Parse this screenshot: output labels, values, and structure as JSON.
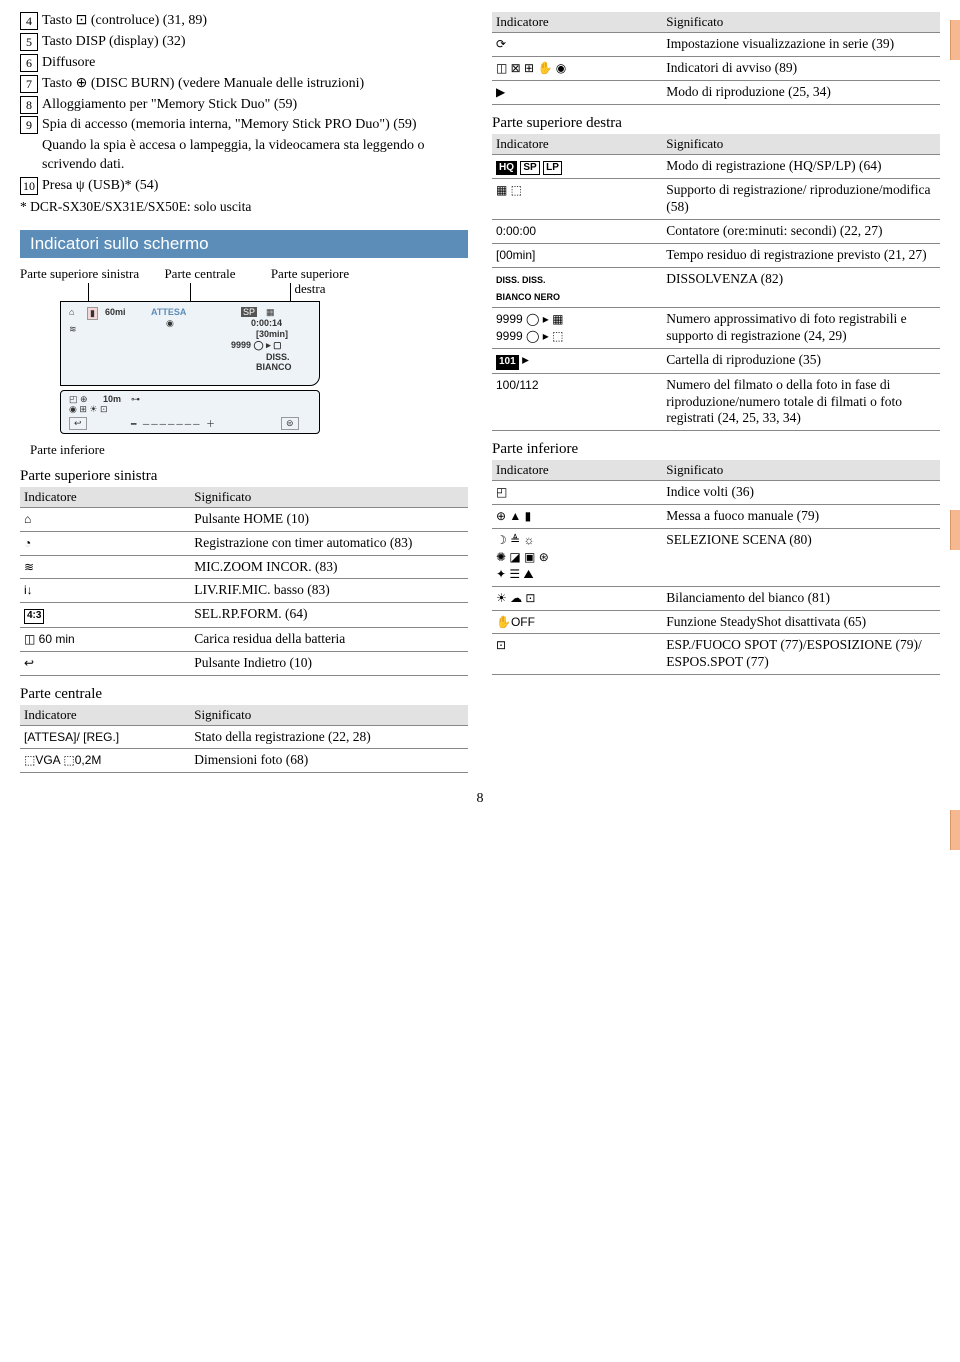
{
  "page_number": "8",
  "left": {
    "items": [
      {
        "n": "4",
        "text": "Tasto ⊡ (controluce) (31, 89)"
      },
      {
        "n": "5",
        "text": "Tasto DISP (display) (32)"
      },
      {
        "n": "6",
        "text": "Diffusore"
      },
      {
        "n": "7",
        "text": "Tasto ⊕ (DISC BURN) (vedere Manuale delle istruzioni)"
      },
      {
        "n": "8",
        "text": "Alloggiamento per \"Memory Stick Duo\" (59)"
      },
      {
        "n": "9",
        "text": "Spia di accesso (memoria interna, \"Memory Stick PRO Duo\") (59)"
      }
    ],
    "note": "Quando la spia è accesa o lampeggia, la videocamera sta leggendo o scrivendo dati.",
    "item10": {
      "n": "10",
      "text": "Presa ψ (USB)* (54)"
    },
    "footnote": "*  DCR-SX30E/SX31E/SX50E: solo uscita",
    "section_bar": "Indicatori sullo schermo",
    "diag": {
      "tl": "Parte superiore sinistra",
      "tc": "Parte centrale",
      "tr": "Parte superiore destra",
      "bl": "Parte inferiore",
      "m_attesa": "ATTESA",
      "m_60": "60mi",
      "m_sp": "SP",
      "m_time": "0:00:14",
      "m_30": "[30min]",
      "m_9999": "9999 ◯ ▸ ▢",
      "m_diss": "DISS.",
      "m_bianco": "BIANCO",
      "m_10m": "10m"
    },
    "upper_left": {
      "title": "Parte superiore sinistra",
      "h1": "Indicatore",
      "h2": "Significato",
      "rows": [
        {
          "i": "⌂",
          "s": "Pulsante HOME (10)"
        },
        {
          "i": "◔",
          "s": "Registrazione con timer automatico (83)"
        },
        {
          "i": "≋",
          "s": "MIC.ZOOM INCOR. (83)"
        },
        {
          "i": "i↓",
          "s": "LIV.RIF.MIC. basso (83)"
        },
        {
          "i": "4:3",
          "is_box": true,
          "s": "SEL.RP.FORM. (64)"
        },
        {
          "i": "◫ 60 min",
          "s": "Carica residua della batteria"
        },
        {
          "i": "↩",
          "s": "Pulsante Indietro (10)"
        }
      ]
    },
    "center": {
      "title": "Parte centrale",
      "h1": "Indicatore",
      "h2": "Significato",
      "rows": [
        {
          "i": "[ATTESA]/ [REG.]",
          "s": "Stato della registrazione (22, 28)"
        },
        {
          "i": "⬚VGA  ⬚0,2M",
          "s": "Dimensioni foto (68)"
        }
      ]
    }
  },
  "right": {
    "top": {
      "h1": "Indicatore",
      "h2": "Significato",
      "rows": [
        {
          "i": "⟳",
          "s": "Impostazione visualizzazione in serie (39)"
        },
        {
          "i": "◫ ⊠ ⊞ ✋ ◉",
          "s": "Indicatori di avviso (89)"
        },
        {
          "i": "▶",
          "s": "Modo di riproduzione (25, 34)"
        }
      ]
    },
    "upper_right": {
      "title": "Parte superiore destra",
      "h1": "Indicatore",
      "h2": "Significato",
      "rows": [
        {
          "i": "HQ SP LP",
          "mode_boxes": true,
          "s": "Modo di registrazione (HQ/SP/LP) (64)"
        },
        {
          "i": "▦ ⬚",
          "s": "Supporto di registrazione/ riproduzione/modifica (58)"
        },
        {
          "i": "0:00:00",
          "s": "Contatore (ore:minuti: secondi) (22, 27)"
        },
        {
          "i": "[00min]",
          "s": "Tempo residuo di registrazione previsto (21, 27)"
        },
        {
          "i": "DISS.  DISS.\nBIANCO NERO",
          "small": true,
          "s": "DISSOLVENZA (82)"
        },
        {
          "i": "9999 ◯ ▸ ▦\n9999 ◯ ▸ ⬚",
          "s": "Numero approssimativo di foto registrabili e supporto di registrazione (24, 29)"
        },
        {
          "i": "101 ▸",
          "folder": true,
          "s": "Cartella di riproduzione (35)"
        },
        {
          "i": "100/112",
          "s": "Numero del filmato o della foto in fase di riproduzione/numero totale di filmati o foto registrati (24, 25, 33, 34)"
        }
      ]
    },
    "lower": {
      "title": "Parte inferiore",
      "h1": "Indicatore",
      "h2": "Significato",
      "rows": [
        {
          "i": "◰",
          "s": "Indice volti (36)"
        },
        {
          "i": "⊕ ▲ ▮",
          "s": "Messa a fuoco manuale (79)"
        },
        {
          "i": "☽ ≜ ☼\n✺ ◪ ▣ ⊛\n✦ ☰ ⛰",
          "s": "SELEZIONE SCENA (80)"
        },
        {
          "i": "☀  ☁  ⊡",
          "s": "Bilanciamento del bianco (81)"
        },
        {
          "i": "✋OFF",
          "s": "Funzione SteadyShot disattivata (65)"
        },
        {
          "i": "⊡",
          "s": "ESP./FUOCO SPOT (77)/ESPOSIZIONE (79)/ ESPOS.SPOT (77)"
        }
      ]
    }
  }
}
